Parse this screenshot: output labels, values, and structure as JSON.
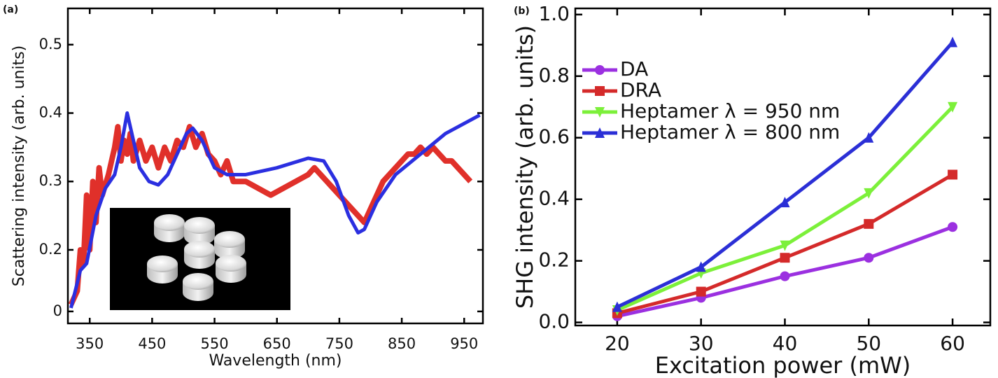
{
  "chart_data": [
    {
      "type": "line",
      "panel_label": "(a)",
      "x_label": "Wavelength (nm)",
      "y_label": "Scattering intensity (arb. units)",
      "xlim": [
        315,
        980
      ],
      "ylim": [
        0.0925,
        0.553
      ],
      "xticks": [
        350,
        450,
        550,
        650,
        750,
        850,
        950
      ],
      "yticks": [
        {
          "value": 0.11,
          "label": "0"
        },
        0.2,
        0.3,
        0.4,
        0.5
      ],
      "series": [
        {
          "color": "#e0302a",
          "width": 8,
          "x": [
            320,
            330,
            335,
            340,
            345,
            350,
            355,
            360,
            365,
            370,
            380,
            390,
            395,
            400,
            405,
            410,
            415,
            420,
            430,
            440,
            450,
            460,
            470,
            480,
            490,
            500,
            510,
            520,
            530,
            540,
            550,
            560,
            570,
            580,
            600,
            620,
            640,
            660,
            680,
            700,
            710,
            720,
            730,
            740,
            750,
            760,
            770,
            780,
            790,
            800,
            810,
            820,
            830,
            840,
            850,
            860,
            870,
            880,
            890,
            900,
            910,
            920,
            930,
            940,
            950,
            960
          ],
          "values": [
            0.12,
            0.14,
            0.2,
            0.18,
            0.28,
            0.2,
            0.3,
            0.24,
            0.32,
            0.28,
            0.31,
            0.35,
            0.38,
            0.33,
            0.36,
            0.34,
            0.37,
            0.33,
            0.36,
            0.33,
            0.35,
            0.32,
            0.35,
            0.33,
            0.36,
            0.35,
            0.38,
            0.35,
            0.37,
            0.34,
            0.33,
            0.31,
            0.33,
            0.3,
            0.3,
            0.29,
            0.28,
            0.29,
            0.3,
            0.31,
            0.32,
            0.31,
            0.3,
            0.29,
            0.28,
            0.27,
            0.26,
            0.25,
            0.24,
            0.26,
            0.28,
            0.3,
            0.31,
            0.32,
            0.33,
            0.34,
            0.34,
            0.35,
            0.34,
            0.35,
            0.34,
            0.33,
            0.33,
            0.32,
            0.31,
            0.3
          ]
        },
        {
          "color": "#2b2fe0",
          "width": 5,
          "x": [
            320,
            335,
            345,
            360,
            375,
            390,
            400,
            410,
            420,
            430,
            445,
            460,
            475,
            490,
            505,
            515,
            530,
            550,
            570,
            600,
            650,
            700,
            725,
            745,
            765,
            780,
            790,
            810,
            840,
            880,
            920,
            975
          ],
          "values": [
            0.115,
            0.17,
            0.18,
            0.25,
            0.29,
            0.31,
            0.35,
            0.4,
            0.36,
            0.32,
            0.3,
            0.295,
            0.31,
            0.34,
            0.37,
            0.378,
            0.36,
            0.32,
            0.31,
            0.31,
            0.32,
            0.334,
            0.33,
            0.3,
            0.25,
            0.225,
            0.23,
            0.27,
            0.31,
            0.34,
            0.37,
            0.397
          ]
        }
      ]
    },
    {
      "type": "line",
      "panel_label": "(b)",
      "x_label": "Excitation power (mW)",
      "y_label": "SHG intensity (arb. units)",
      "xlim": [
        15,
        64.5
      ],
      "ylim": [
        -0.01,
        1.02
      ],
      "xticks": [
        20,
        30,
        40,
        50,
        60
      ],
      "yticks": [
        {
          "value": 0,
          "label": "0.0"
        },
        0.2,
        0.4,
        0.6,
        0.8,
        {
          "value": 1,
          "label": "1.0"
        }
      ],
      "legend": "upper left",
      "x": [
        20,
        30,
        40,
        50,
        60
      ],
      "series": [
        {
          "name": "DA",
          "color": "#9b30e0",
          "marker": "circle",
          "values": [
            0.02,
            0.08,
            0.15,
            0.21,
            0.31
          ]
        },
        {
          "name": "DRA",
          "color": "#d42a2a",
          "marker": "square",
          "values": [
            0.03,
            0.1,
            0.21,
            0.32,
            0.48
          ]
        },
        {
          "name": "Heptamer λ = 950 nm",
          "color": "#7cf03a",
          "marker": "triangle-down",
          "values": [
            0.04,
            0.16,
            0.25,
            0.42,
            0.7
          ]
        },
        {
          "name": "Heptamer λ = 800 nm",
          "color": "#2b2fd6",
          "marker": "triangle-up",
          "values": [
            0.05,
            0.18,
            0.39,
            0.6,
            0.91
          ]
        }
      ]
    }
  ]
}
